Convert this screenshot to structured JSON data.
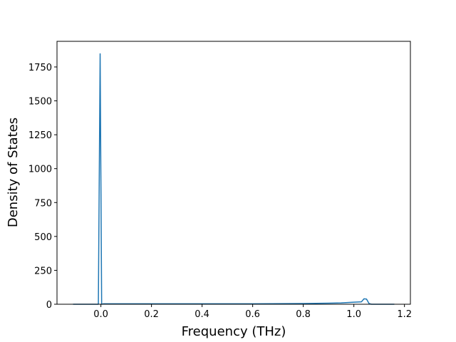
{
  "chart_data": {
    "type": "line",
    "xlabel": "Frequency (THz)",
    "ylabel": "Density of States",
    "x": [
      -0.11,
      -0.01,
      -0.003,
      0.003,
      0.01,
      0.2,
      0.4,
      0.6,
      0.8,
      0.9,
      0.95,
      1.0,
      1.03,
      1.04,
      1.05,
      1.06,
      1.07,
      1.1,
      1.16
    ],
    "series": [
      {
        "color": "#1f77b4",
        "values": [
          0,
          0,
          1847,
          0,
          3,
          3,
          3,
          3,
          5,
          8,
          10,
          15,
          18,
          40,
          38,
          5,
          0,
          0,
          0
        ]
      }
    ],
    "xlim": [
      -0.1735,
      1.2235
    ],
    "xticks": [
      {
        "value": 0,
        "label": "0.0"
      },
      {
        "value": 0.2,
        "label": "0.2"
      },
      {
        "value": 0.4,
        "label": "0.4"
      },
      {
        "value": 0.6,
        "label": "0.6"
      },
      {
        "value": 0.8,
        "label": "0.8"
      },
      {
        "value": 1.0,
        "label": "1.0"
      },
      {
        "value": 1.2,
        "label": "1.2"
      }
    ],
    "ylim": [
      0,
      1939
    ],
    "yticks": [
      0,
      250,
      500,
      750,
      1000,
      1250,
      1500,
      1750
    ]
  }
}
